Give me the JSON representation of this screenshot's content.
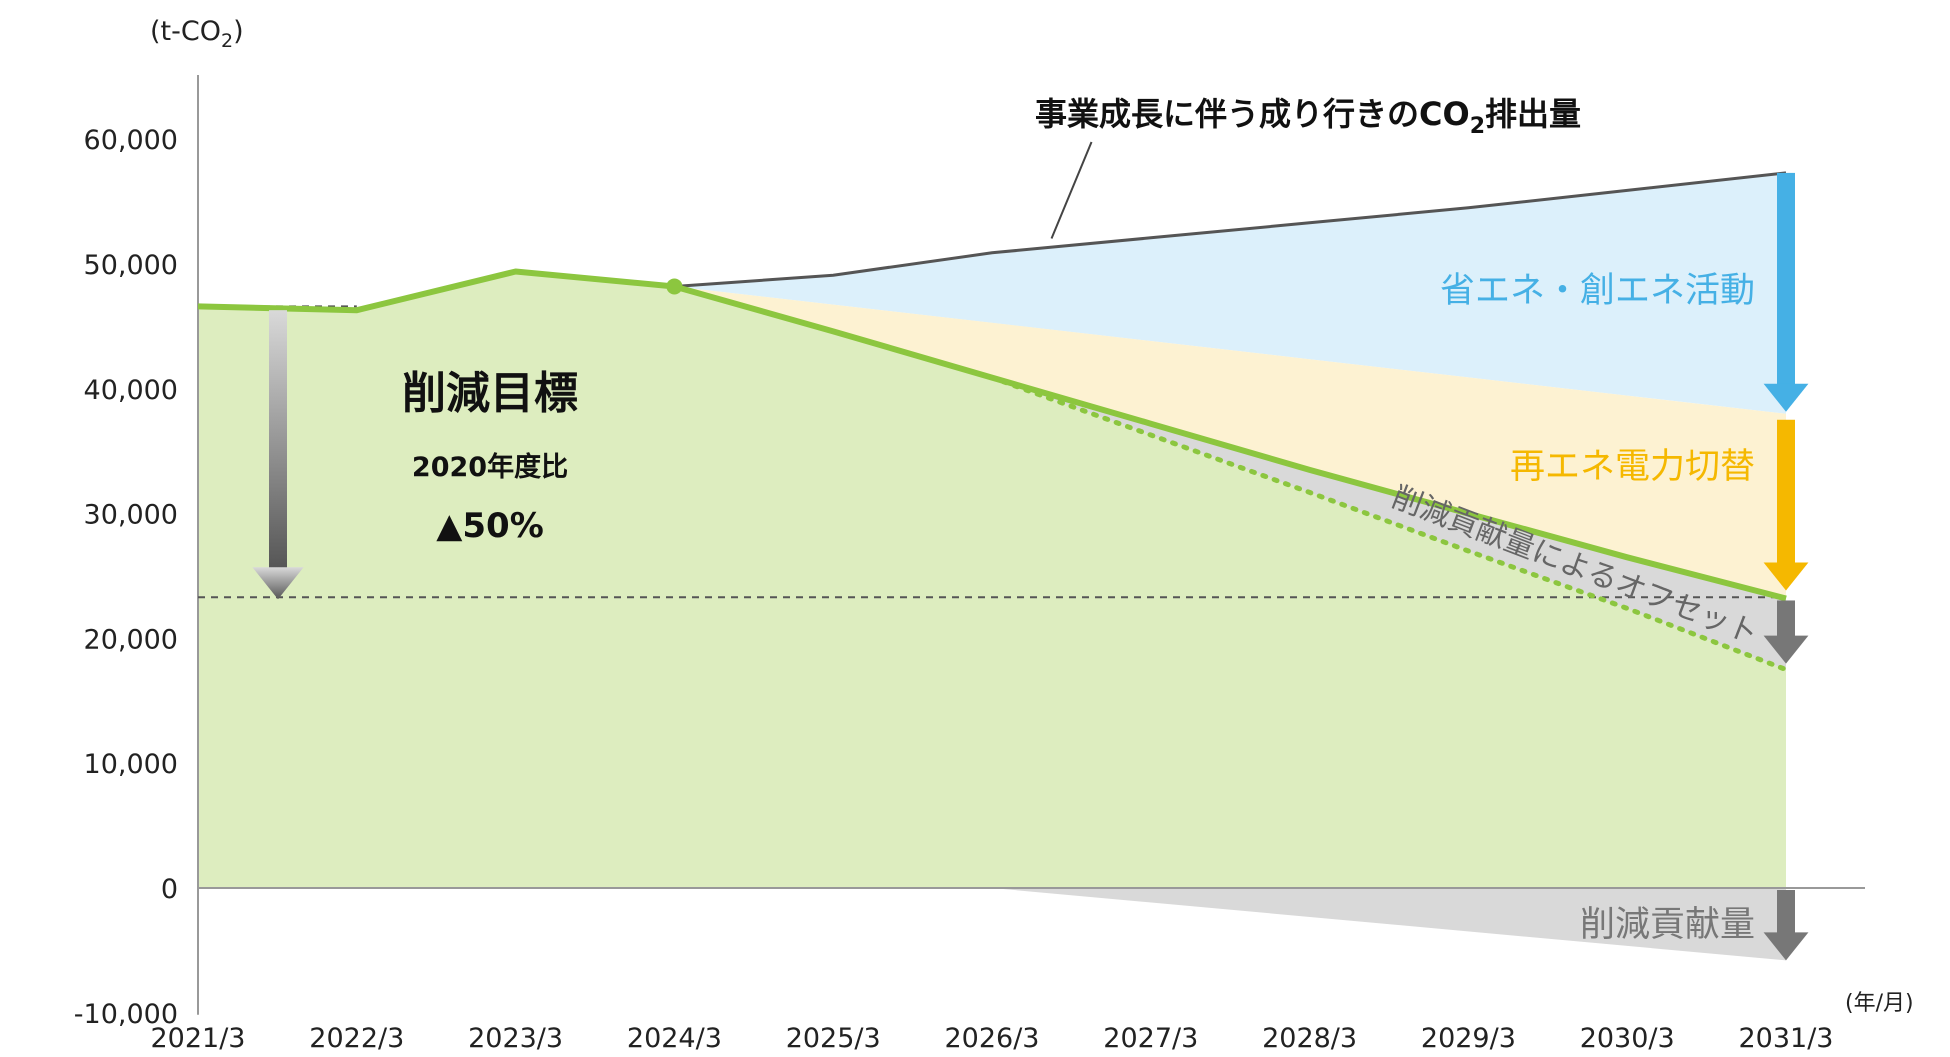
{
  "chart_data": {
    "type": "area",
    "unit_label": "(t-CO",
    "unit_sub": "2",
    "unit_close": ")",
    "x_unit_label": "(年/月)",
    "categories": [
      "2021/3",
      "2022/3",
      "2023/3",
      "2024/3",
      "2025/3",
      "2026/3",
      "2027/3",
      "2028/3",
      "2029/3",
      "2030/3",
      "2031/3"
    ],
    "y_ticks": [
      60000,
      50000,
      40000,
      30000,
      20000,
      10000,
      0,
      -10000
    ],
    "y_tick_labels": [
      "60,000",
      "50,000",
      "40,000",
      "30,000",
      "20,000",
      "10,000",
      "0",
      "-10,000"
    ],
    "ylim": [
      -10000,
      65000
    ],
    "series": [
      {
        "name": "事業成長に伴う成り行きのCO",
        "name_sub": "2",
        "name_tail": "排出量",
        "values": [
          null,
          null,
          null,
          48200,
          49100,
          50900,
          52100,
          53300,
          54500,
          55900,
          57300
        ]
      },
      {
        "values": [
          46600,
          46300,
          49400,
          48200,
          44600,
          40900,
          37200,
          33500,
          30000,
          26500,
          23200
        ]
      },
      {
        "values": [
          null,
          null,
          null,
          null,
          null,
          40900,
          36300,
          31700,
          27000,
          22400,
          17500
        ]
      }
    ],
    "bands": [
      {
        "label": "省エネ・創エネ活動",
        "color": "#45b0e5",
        "fill": "#dcf0fb"
      },
      {
        "label": "再エネ電力切替",
        "color": "#f5b800",
        "fill": "#fdf2d2"
      },
      {
        "label": "削減貢献量によるオフセット",
        "color": "#7a7a7a",
        "fill": "#d9d9d9"
      }
    ],
    "below_zero": {
      "label": "削減貢献量",
      "value_2031": -5800
    },
    "reference_lines": [
      46600,
      23300
    ],
    "target": {
      "title": "削減目標",
      "basis": "2020年度比",
      "value": "▲50%"
    },
    "colors": {
      "green": "#8cc63f",
      "green_fill": "#ddedbf",
      "bau_line": "#555555",
      "axis": "#999999"
    }
  }
}
